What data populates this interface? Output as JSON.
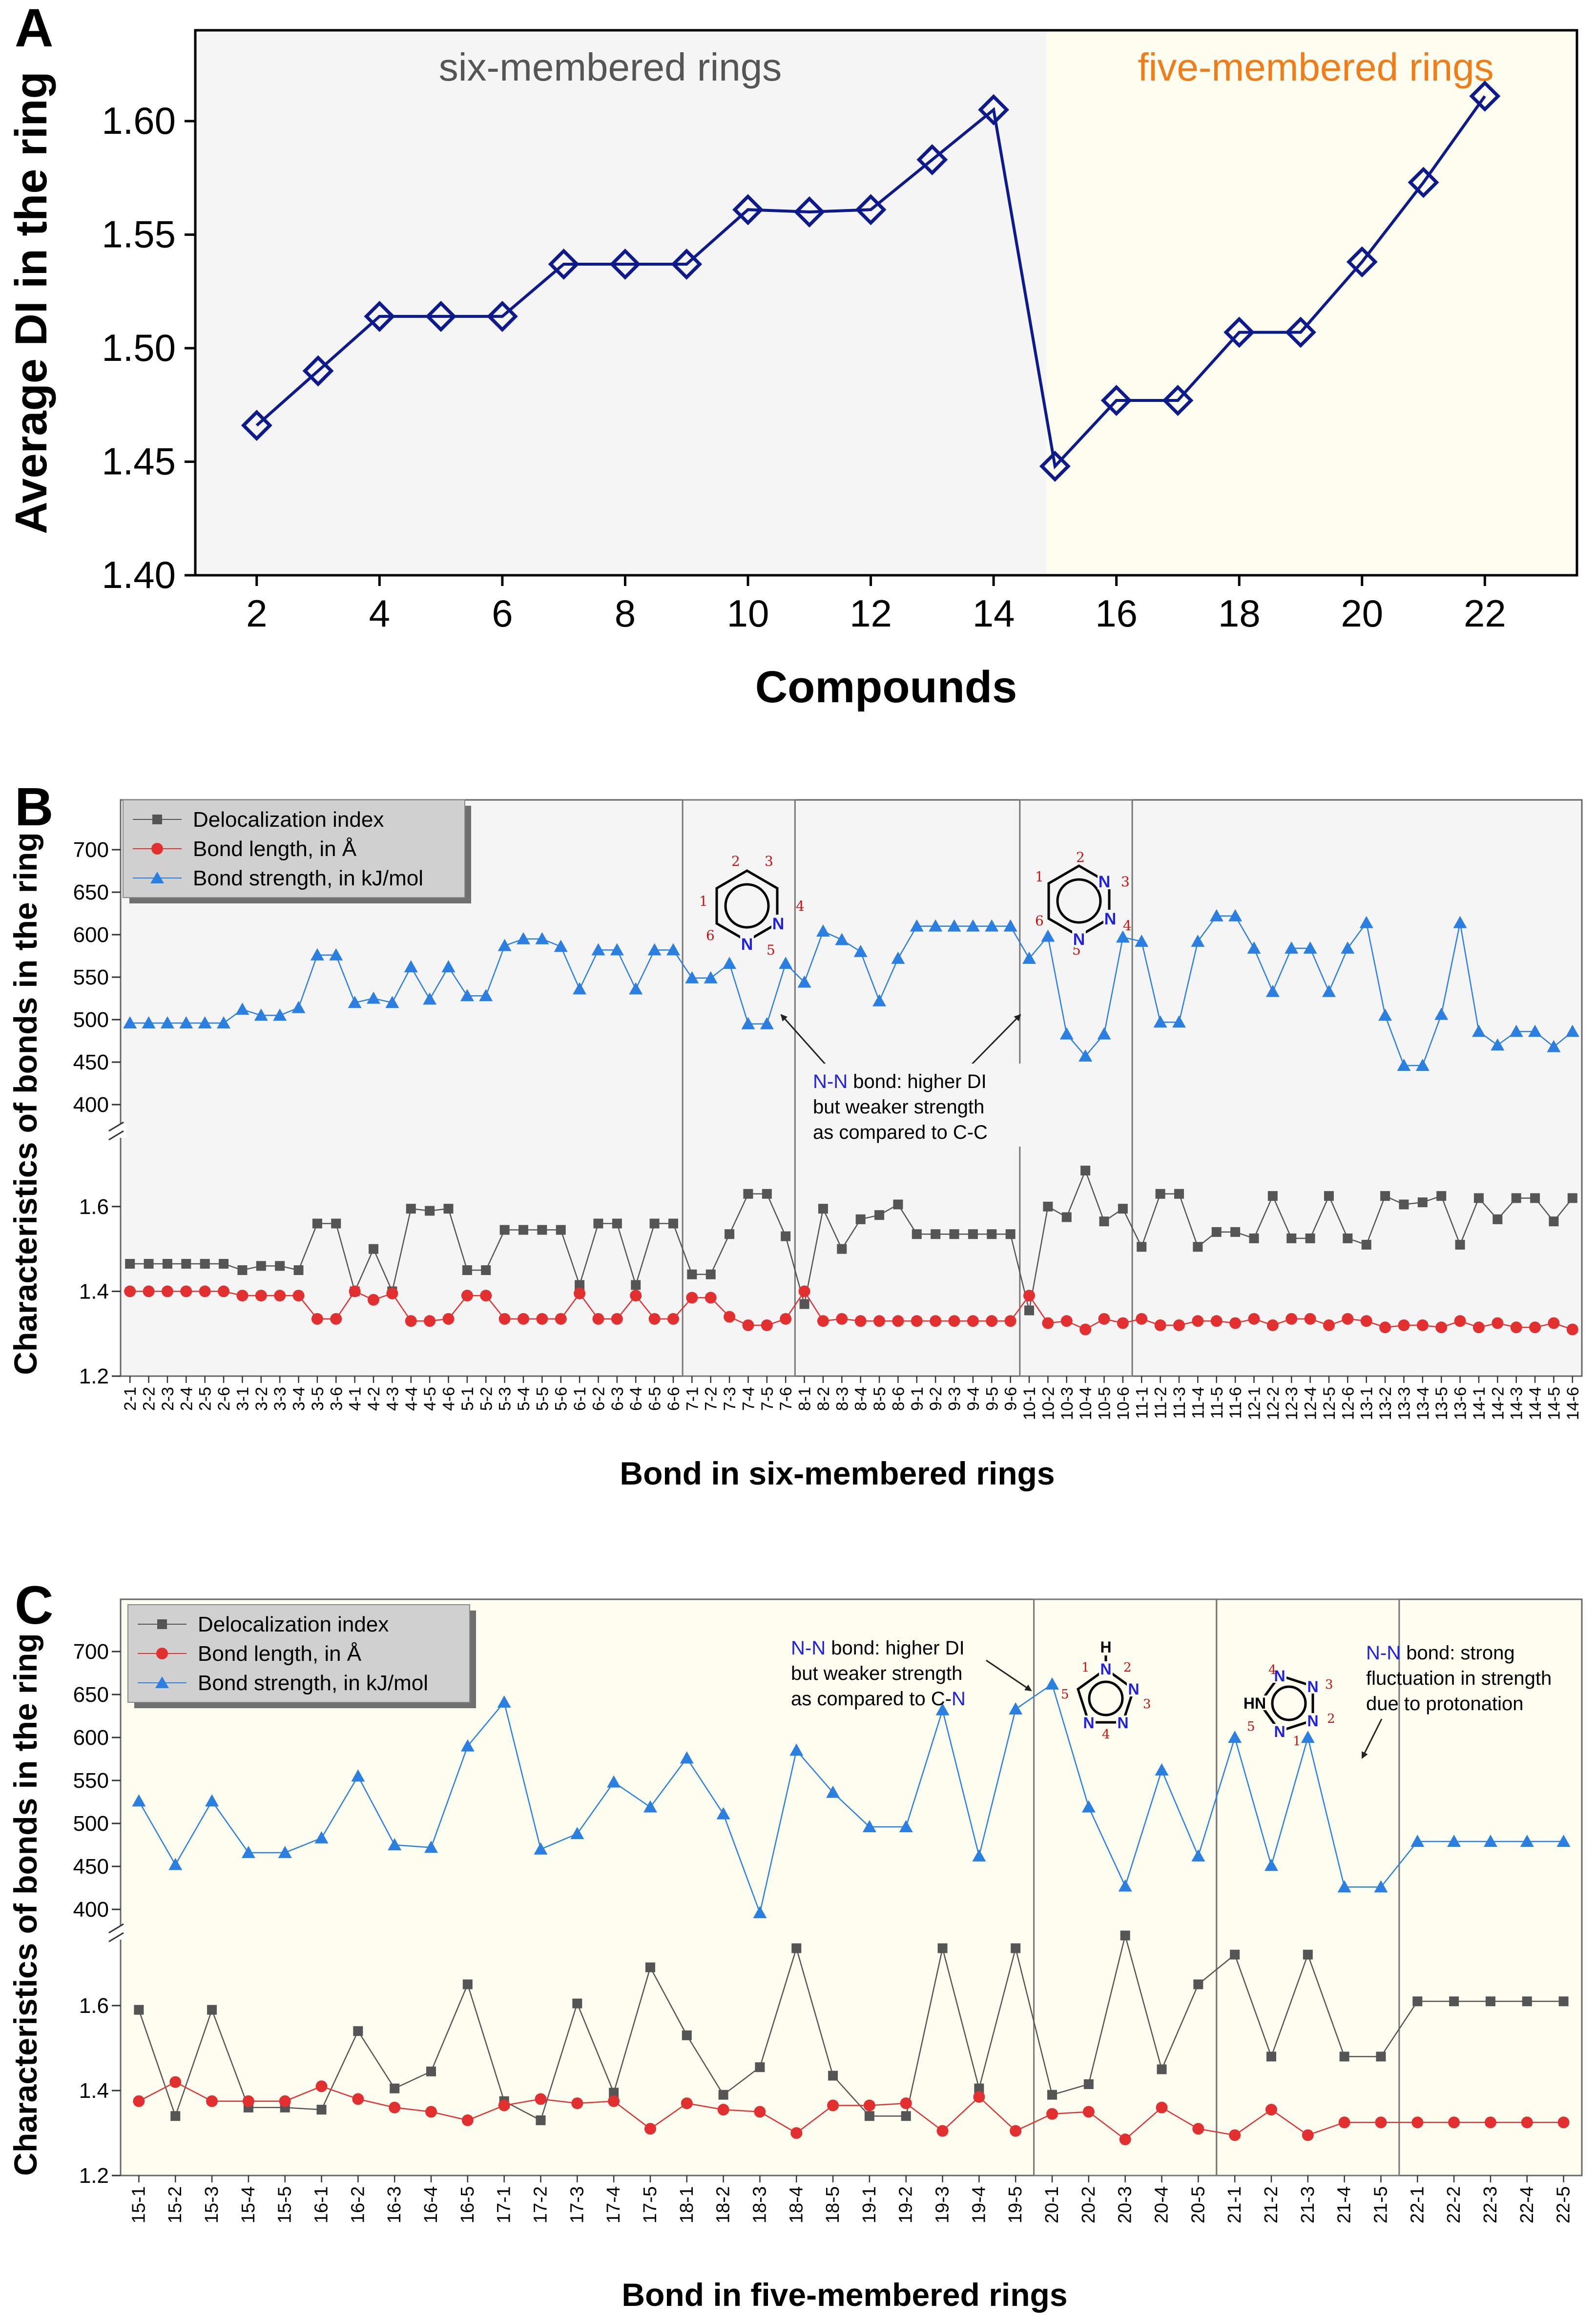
{
  "colors": {
    "navy": "#0d1a8c",
    "gray": "#555555",
    "red": "#e23030",
    "blue": "#2b7fe0",
    "bgA": "#f5f5f5",
    "bgB": "#fdfdf0",
    "six_label": "#555555",
    "five_label": "#f07d1a",
    "nn": "#2222dd",
    "num": "#cc1111"
  },
  "chart_data": [
    {
      "panel": "A",
      "type": "line",
      "title_left": "six-membered rings",
      "title_right": "five-membered rings",
      "xlabel": "Compounds",
      "ylabel": "Average DI in the ring",
      "xlim": [
        1,
        23.5
      ],
      "ylim": [
        1.4,
        1.64
      ],
      "xticks": [
        "2",
        "4",
        "6",
        "8",
        "10",
        "12",
        "14",
        "16",
        "18",
        "20",
        "22"
      ],
      "yticks": [
        "1.40",
        "1.45",
        "1.50",
        "1.55",
        "1.60"
      ],
      "series": [
        {
          "name": "six",
          "x": [
            2,
            3,
            4,
            5,
            6,
            7,
            8,
            9,
            10,
            11,
            12,
            13,
            14
          ],
          "values": [
            1.466,
            1.49,
            1.514,
            1.514,
            1.514,
            1.537,
            1.537,
            1.537,
            1.561,
            1.56,
            1.561,
            1.583,
            1.605
          ]
        },
        {
          "name": "five",
          "x": [
            15,
            16,
            17,
            18,
            19,
            20,
            21,
            22
          ],
          "values": [
            1.448,
            1.477,
            1.477,
            1.507,
            1.507,
            1.538,
            1.573,
            1.611
          ]
        }
      ]
    },
    {
      "panel": "B",
      "type": "line",
      "xlabel": "Bond in six-membered rings",
      "ylabel": "Characteristics of bonds in the ring",
      "legend": [
        "Delocalization index",
        "Bond length, in Å",
        "Bond strength, in kJ/mol"
      ],
      "upper_yticks": [
        "400",
        "450",
        "500",
        "550",
        "600",
        "650",
        "700"
      ],
      "lower_yticks": [
        "1.2",
        "1.4",
        "1.6"
      ],
      "categories": [
        "2-1",
        "2-2",
        "2-3",
        "2-4",
        "2-5",
        "2-6",
        "3-1",
        "3-2",
        "3-3",
        "3-4",
        "3-5",
        "3-6",
        "4-1",
        "4-2",
        "4-3",
        "4-4",
        "4-5",
        "4-6",
        "5-1",
        "5-2",
        "5-3",
        "5-4",
        "5-5",
        "5-6",
        "6-1",
        "6-2",
        "6-3",
        "6-4",
        "6-5",
        "6-6",
        "7-1",
        "7-2",
        "7-3",
        "7-4",
        "7-5",
        "7-6",
        "8-1",
        "8-2",
        "8-3",
        "8-4",
        "8-5",
        "8-6",
        "9-1",
        "9-2",
        "9-3",
        "9-4",
        "9-5",
        "9-6",
        "10-1",
        "10-2",
        "10-3",
        "10-4",
        "10-5",
        "10-6",
        "11-1",
        "11-2",
        "11-3",
        "11-4",
        "11-5",
        "11-6",
        "12-1",
        "12-2",
        "12-3",
        "12-4",
        "12-5",
        "12-6",
        "13-1",
        "13-2",
        "13-3",
        "13-4",
        "13-5",
        "13-6",
        "14-1",
        "14-2",
        "14-3",
        "14-4",
        "14-5",
        "14-6"
      ],
      "delocalization_index": [
        1.465,
        1.465,
        1.465,
        1.465,
        1.465,
        1.465,
        1.45,
        1.46,
        1.46,
        1.45,
        1.56,
        1.56,
        1.4,
        1.5,
        1.4,
        1.595,
        1.59,
        1.595,
        1.45,
        1.45,
        1.545,
        1.545,
        1.545,
        1.545,
        1.415,
        1.56,
        1.56,
        1.415,
        1.56,
        1.56,
        1.44,
        1.44,
        1.535,
        1.63,
        1.63,
        1.53,
        1.37,
        1.595,
        1.5,
        1.57,
        1.58,
        1.605,
        1.535,
        1.535,
        1.535,
        1.535,
        1.535,
        1.535,
        1.355,
        1.6,
        1.575,
        1.685,
        1.565,
        1.595,
        1.505,
        1.63,
        1.63,
        1.505,
        1.54,
        1.54,
        1.525,
        1.625,
        1.525,
        1.525,
        1.625,
        1.525,
        1.51,
        1.625,
        1.605,
        1.61,
        1.625,
        1.51,
        1.62,
        1.57,
        1.62,
        1.62,
        1.565,
        1.62
      ],
      "bond_length": [
        1.4,
        1.4,
        1.4,
        1.4,
        1.4,
        1.4,
        1.39,
        1.39,
        1.39,
        1.39,
        1.335,
        1.335,
        1.4,
        1.38,
        1.395,
        1.33,
        1.33,
        1.335,
        1.39,
        1.39,
        1.335,
        1.335,
        1.335,
        1.335,
        1.395,
        1.335,
        1.335,
        1.39,
        1.335,
        1.335,
        1.385,
        1.385,
        1.34,
        1.32,
        1.32,
        1.335,
        1.4,
        1.33,
        1.335,
        1.33,
        1.33,
        1.33,
        1.33,
        1.33,
        1.33,
        1.33,
        1.33,
        1.33,
        1.39,
        1.325,
        1.33,
        1.31,
        1.335,
        1.325,
        1.335,
        1.32,
        1.32,
        1.33,
        1.33,
        1.325,
        1.335,
        1.32,
        1.335,
        1.335,
        1.32,
        1.335,
        1.33,
        1.315,
        1.32,
        1.32,
        1.315,
        1.33,
        1.315,
        1.325,
        1.315,
        1.315,
        1.325,
        1.31
      ],
      "bond_strength": [
        496,
        496,
        496,
        496,
        496,
        496,
        512,
        505,
        505,
        514,
        576,
        576,
        520,
        525,
        520,
        562,
        524,
        562,
        528,
        528,
        587,
        595,
        595,
        586,
        536,
        582,
        582,
        536,
        582,
        582,
        549,
        549,
        566,
        495,
        495,
        566,
        544,
        604,
        594,
        580,
        522,
        572,
        610,
        610,
        610,
        610,
        610,
        610,
        572,
        598,
        483,
        457,
        483,
        597,
        592,
        497,
        497,
        592,
        622,
        622,
        584,
        533,
        584,
        584,
        533,
        584,
        614,
        505,
        446,
        446,
        506,
        614,
        486,
        470,
        486,
        486,
        468,
        486
      ],
      "annotation": {
        "prefix": "N-N",
        "rest": [
          " bond: higher DI",
          "but weaker strength",
          "as compared to C-C"
        ]
      },
      "molecules": [
        {
          "n": [
            "1",
            "2",
            "3",
            "4",
            "5",
            "6"
          ],
          "atoms": [
            "N",
            "N"
          ]
        },
        {
          "n": [
            "1",
            "2",
            "3",
            "4",
            "5",
            "6"
          ],
          "atoms": [
            "N",
            "N",
            "N"
          ]
        }
      ]
    },
    {
      "panel": "C",
      "type": "line",
      "xlabel": "Bond in five-membered rings",
      "ylabel": "Characteristics of bonds in the ring",
      "legend": [
        "Delocalization index",
        "Bond length, in Å",
        "Bond strength, in kJ/mol"
      ],
      "upper_yticks": [
        "400",
        "450",
        "500",
        "550",
        "600",
        "650",
        "700"
      ],
      "lower_yticks": [
        "1.2",
        "1.4",
        "1.6"
      ],
      "categories": [
        "15-1",
        "15-2",
        "15-3",
        "15-4",
        "15-5",
        "16-1",
        "16-2",
        "16-3",
        "16-4",
        "16-5",
        "17-1",
        "17-2",
        "17-3",
        "17-4",
        "17-5",
        "18-1",
        "18-2",
        "18-3",
        "18-4",
        "18-5",
        "19-1",
        "19-2",
        "19-3",
        "19-4",
        "19-5",
        "20-1",
        "20-2",
        "20-3",
        "20-4",
        "20-5",
        "21-1",
        "21-2",
        "21-3",
        "21-4",
        "21-5",
        "22-1",
        "22-2",
        "22-3",
        "22-4",
        "22-5"
      ],
      "delocalization_index": [
        1.59,
        1.34,
        1.59,
        1.36,
        1.36,
        1.355,
        1.54,
        1.405,
        1.445,
        1.65,
        1.375,
        1.33,
        1.605,
        1.395,
        1.69,
        1.53,
        1.39,
        1.455,
        1.735,
        1.435,
        1.34,
        1.34,
        1.735,
        1.405,
        1.735,
        1.39,
        1.415,
        1.765,
        1.45,
        1.65,
        1.72,
        1.48,
        1.72,
        1.48,
        1.48,
        1.61,
        1.61,
        1.61,
        1.61,
        1.61
      ],
      "bond_length": [
        1.375,
        1.42,
        1.375,
        1.375,
        1.375,
        1.41,
        1.38,
        1.36,
        1.35,
        1.33,
        1.365,
        1.38,
        1.37,
        1.375,
        1.31,
        1.37,
        1.355,
        1.35,
        1.3,
        1.365,
        1.365,
        1.37,
        1.305,
        1.385,
        1.305,
        1.345,
        1.35,
        1.285,
        1.36,
        1.31,
        1.295,
        1.355,
        1.295,
        1.325,
        1.325,
        1.325,
        1.325,
        1.325,
        1.325,
        1.325
      ],
      "bond_strength": [
        526,
        452,
        526,
        466,
        466,
        483,
        555,
        475,
        472,
        590,
        641,
        470,
        488,
        548,
        519,
        576,
        511,
        396,
        585,
        536,
        496,
        496,
        632,
        462,
        633,
        662,
        519,
        427,
        562,
        462,
        600,
        451,
        600,
        426,
        426,
        479,
        479,
        479,
        479,
        479
      ],
      "annotation_left": {
        "prefix": "N-N",
        "rest": [
          " bond: higher DI",
          "but weaker strength",
          "as compared to C-"
        ],
        "suffix": "N"
      },
      "annotation_right": {
        "prefix": "N-N",
        "rest": [
          " bond: strong",
          "fluctuation in strength",
          "due to protonation"
        ]
      },
      "molecules": [
        {
          "n": [
            "1",
            "2",
            "3",
            "4",
            "5"
          ],
          "atoms": [
            "H",
            "N",
            "N",
            "N",
            "N"
          ]
        },
        {
          "n": [
            "1",
            "2",
            "3",
            "4",
            "5"
          ],
          "atoms": [
            "N",
            "N",
            "N",
            "N",
            "HN"
          ]
        }
      ]
    }
  ]
}
